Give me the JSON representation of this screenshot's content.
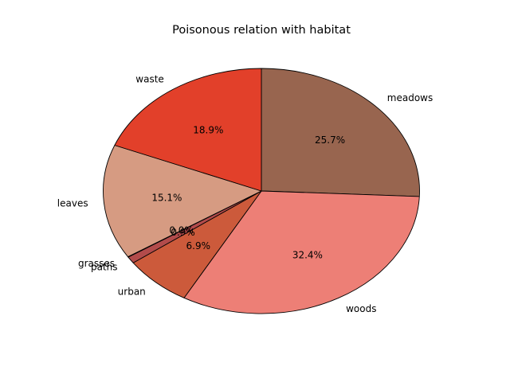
{
  "chart_data": {
    "type": "pie",
    "title": "Poisonous relation with habitat",
    "slices": [
      {
        "label": "meadows",
        "pct_label": "25.7%",
        "value": 25.7,
        "color": "#98654f"
      },
      {
        "label": "woods",
        "pct_label": "32.4%",
        "value": 32.4,
        "color": "#ed7f76"
      },
      {
        "label": "urban",
        "pct_label": "6.9%",
        "value": 6.9,
        "color": "#cc5a3b"
      },
      {
        "label": "paths",
        "pct_label": "0.9%",
        "value": 0.9,
        "color": "#b24b4b"
      },
      {
        "label": "grasses",
        "pct_label": "0.0%",
        "value": 0.05,
        "color": "#f19488"
      },
      {
        "label": "leaves",
        "pct_label": "15.1%",
        "value": 15.1,
        "color": "#d69b82"
      },
      {
        "label": "waste",
        "pct_label": "18.9%",
        "value": 18.9,
        "color": "#e2402a"
      }
    ],
    "start_angle_deg": 90,
    "direction": "clockwise",
    "legend": "none"
  }
}
